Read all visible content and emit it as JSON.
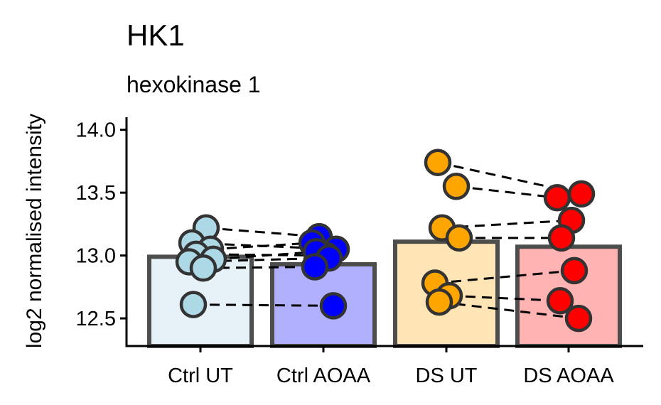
{
  "chart_data": {
    "type": "bar",
    "title": "HK1",
    "subtitle": "hexokinase 1",
    "xlabel": "",
    "ylabel": "log2 normalised intensity",
    "ylim": [
      12.28,
      14.1
    ],
    "yticks": [
      12.5,
      13.0,
      13.5,
      14.0
    ],
    "ytick_labels": [
      "12.5",
      "13.0",
      "13.5",
      "14.0"
    ],
    "categories": [
      "Ctrl UT",
      "Ctrl AOAA",
      "DS UT",
      "DS AOAA"
    ],
    "bar_values": [
      12.99,
      12.93,
      13.11,
      13.07
    ],
    "bar_fill_colors": [
      "#e6f2f8",
      "#b0b0ff",
      "#ffe4b5",
      "#ffb3b3"
    ],
    "point_colors": [
      "#add8e6",
      "#0000ff",
      "#ffa500",
      "#ff0000"
    ],
    "bar_edge_color": "#4d4d4d",
    "paired_groups": [
      {
        "from": "Ctrl UT",
        "to": "Ctrl AOAA",
        "pairs": [
          [
            13.22,
            13.15
          ],
          [
            13.1,
            13.05
          ],
          [
            13.05,
            13.1
          ],
          [
            13.01,
            13.0
          ],
          [
            12.97,
            13.03
          ],
          [
            12.95,
            12.98
          ],
          [
            12.9,
            12.91
          ],
          [
            12.61,
            12.6
          ]
        ]
      },
      {
        "from": "DS UT",
        "to": "DS AOAA",
        "pairs": [
          [
            13.74,
            13.49
          ],
          [
            13.55,
            13.46
          ],
          [
            13.22,
            13.28
          ],
          [
            13.14,
            13.14
          ],
          [
            12.78,
            12.88
          ],
          [
            12.68,
            12.64
          ],
          [
            12.63,
            12.5
          ]
        ]
      }
    ],
    "grid": false,
    "legend": "none"
  }
}
